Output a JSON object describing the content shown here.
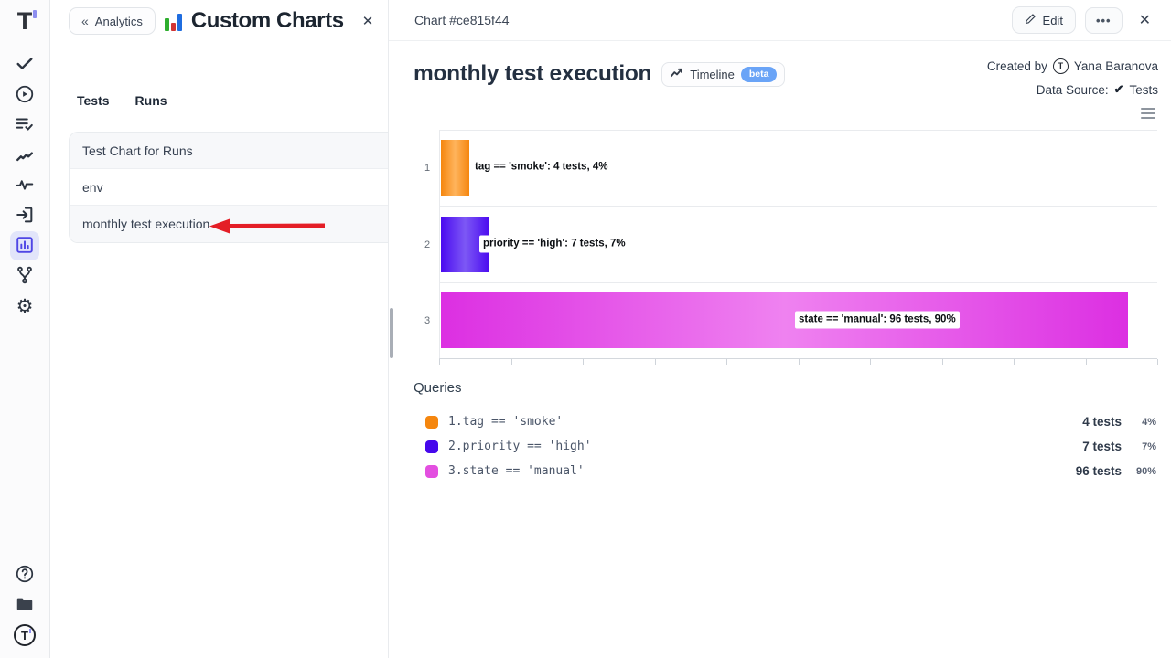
{
  "rail": {
    "icons": [
      "logo",
      "tests",
      "runs",
      "test-plans",
      "steps",
      "pulse",
      "import",
      "analytics",
      "branches",
      "settings",
      "help",
      "projects",
      "account"
    ]
  },
  "left_panel": {
    "back_label": "Analytics",
    "title": "Custom Charts",
    "tabs": [
      {
        "label": "Tests"
      },
      {
        "label": "Runs"
      }
    ],
    "items": [
      {
        "label": "Test Chart for Runs"
      },
      {
        "label": "env"
      },
      {
        "label": "monthly test execution"
      }
    ]
  },
  "right_panel": {
    "header": {
      "title": "Chart #ce815f44",
      "edit_label": "Edit",
      "more_label": "•••",
      "close_label": "✕"
    },
    "chart_title": "monthly test execution",
    "timeline_label": "Timeline",
    "beta_label": "beta",
    "created_by_label": "Created by",
    "created_by_name": "Yana Baranova",
    "data_source_label": "Data Source:",
    "data_source_check": "✔",
    "data_source_value": "Tests"
  },
  "chart_data": {
    "type": "bar",
    "orientation": "horizontal",
    "title": "monthly test execution",
    "categories": [
      "1",
      "2",
      "3"
    ],
    "values_tests": [
      4,
      7,
      96
    ],
    "values_percent": [
      4,
      7,
      90
    ],
    "xlim": [
      0,
      100
    ],
    "x_tick_count": 11,
    "grid": "category separators horizontal, ticks on bottom axis, no tick labels visible",
    "legend": "none (queries list below chart)",
    "bars": [
      {
        "category": "1",
        "label": "tag == 'smoke': 4 tests, 4%",
        "tests": 4,
        "percent": 4,
        "width_pct": 3.9,
        "color": "#f5860e",
        "color_light": "#ffb45c"
      },
      {
        "category": "2",
        "label": "priority == 'high': 7 tests, 7%",
        "tests": 7,
        "percent": 7,
        "width_pct": 6.8,
        "color": "#4a0af0",
        "color_light": "#7d58f5"
      },
      {
        "category": "3",
        "label": "state == 'manual': 96 tests, 90%",
        "tests": 96,
        "percent": 90,
        "width_pct": 95.8,
        "color": "#dc2fe2",
        "color_light": "#ef82f0"
      }
    ]
  },
  "queries": {
    "heading": "Queries",
    "rows": [
      {
        "index": "1.",
        "query": "tag == 'smoke'",
        "tests": "4 tests",
        "percent": "4%",
        "color": "#f5860e"
      },
      {
        "index": "2.",
        "query": "priority == 'high'",
        "tests": "7 tests",
        "percent": "7%",
        "color": "#4608ec"
      },
      {
        "index": "3.",
        "query": "state == 'manual'",
        "tests": "96 tests",
        "percent": "90%",
        "color": "#e34fe0"
      }
    ]
  }
}
